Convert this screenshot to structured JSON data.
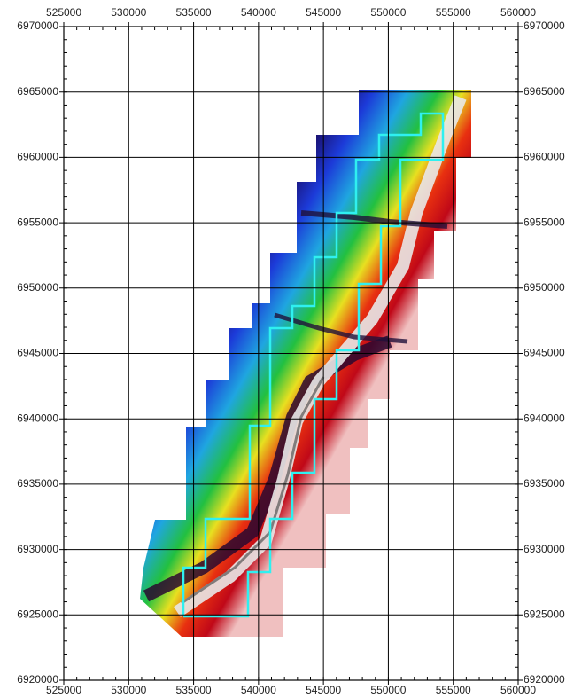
{
  "map": {
    "xlim": [
      525000,
      560000
    ],
    "ylim": [
      6920000,
      6970000
    ],
    "xticks": [
      525000,
      530000,
      535000,
      540000,
      545000,
      550000,
      555000,
      560000
    ],
    "yticks": [
      6920000,
      6925000,
      6930000,
      6935000,
      6940000,
      6945000,
      6950000,
      6955000,
      6960000,
      6965000,
      6970000
    ]
  }
}
